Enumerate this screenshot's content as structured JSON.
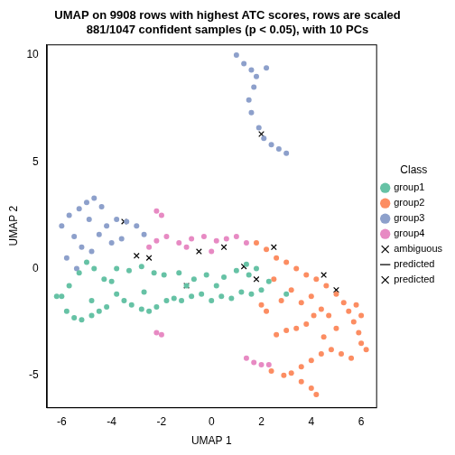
{
  "chart_data": {
    "type": "scatter",
    "title": "UMAP on 9908 rows with highest ATC scores, rows are scaled\n881/1047 confident samples (p < 0.05), with 10 PCs",
    "x_label": "UMAP 1",
    "y_label": "UMAP 2",
    "legend_title": "Class",
    "legend": "right",
    "grid": false,
    "xlim": [
      -6.6,
      6.6
    ],
    "ylim": [
      -6.5,
      10.5
    ],
    "xticks": [
      -6,
      -4,
      -2,
      0,
      2,
      4,
      6
    ],
    "yticks": [
      -5,
      0,
      5,
      10
    ],
    "series": [
      {
        "name": "group1",
        "color": "#66C2A5",
        "marker": "circle",
        "values": [
          [
            -6.0,
            -1.3
          ],
          [
            -5.8,
            -2.0
          ],
          [
            -5.5,
            -2.3
          ],
          [
            -5.2,
            -2.4
          ],
          [
            -4.8,
            -2.2
          ],
          [
            -4.5,
            -2.0
          ],
          [
            -4.2,
            -1.8
          ],
          [
            -5.7,
            -0.8
          ],
          [
            -5.3,
            -0.2
          ],
          [
            -5.0,
            0.3
          ],
          [
            -4.7,
            0.0
          ],
          [
            -4.3,
            -0.5
          ],
          [
            -3.8,
            -1.2
          ],
          [
            -3.5,
            -1.5
          ],
          [
            -3.2,
            -1.7
          ],
          [
            -2.8,
            -1.9
          ],
          [
            -2.5,
            -2.0
          ],
          [
            -2.2,
            -1.8
          ],
          [
            -1.8,
            -1.5
          ],
          [
            -1.5,
            -1.4
          ],
          [
            -1.2,
            -1.5
          ],
          [
            -0.8,
            -1.3
          ],
          [
            -0.4,
            -1.2
          ],
          [
            0.0,
            -1.5
          ],
          [
            0.4,
            -1.3
          ],
          [
            0.8,
            -1.4
          ],
          [
            1.2,
            -1.1
          ],
          [
            1.6,
            -1.2
          ],
          [
            2.0,
            -1.0
          ],
          [
            -3.8,
            0.0
          ],
          [
            -3.3,
            -0.1
          ],
          [
            -2.8,
            0.1
          ],
          [
            -2.3,
            -0.2
          ],
          [
            -1.9,
            -0.3
          ],
          [
            -1.3,
            -0.2
          ],
          [
            -0.7,
            -0.5
          ],
          [
            -0.2,
            -0.3
          ],
          [
            0.5,
            -0.4
          ],
          [
            1.0,
            -0.1
          ],
          [
            1.4,
            0.2
          ],
          [
            1.8,
            0.0
          ],
          [
            -4.0,
            -0.6
          ],
          [
            -2.7,
            -1.1
          ],
          [
            -1.0,
            -0.8
          ],
          [
            0.2,
            -0.8
          ],
          [
            1.5,
            -0.3
          ],
          [
            2.3,
            -0.6
          ],
          [
            3.0,
            -1.2
          ],
          [
            -6.2,
            -1.3
          ],
          [
            -4.8,
            -1.5
          ]
        ]
      },
      {
        "name": "group2",
        "color": "#FC8D62",
        "marker": "circle",
        "values": [
          [
            1.8,
            1.2
          ],
          [
            2.2,
            0.9
          ],
          [
            2.6,
            0.5
          ],
          [
            3.0,
            0.3
          ],
          [
            3.4,
            0.0
          ],
          [
            3.8,
            -0.3
          ],
          [
            4.2,
            -0.5
          ],
          [
            4.6,
            -0.8
          ],
          [
            5.0,
            -1.2
          ],
          [
            5.3,
            -1.6
          ],
          [
            5.5,
            -2.0
          ],
          [
            5.7,
            -2.5
          ],
          [
            5.9,
            -3.0
          ],
          [
            6.0,
            -3.5
          ],
          [
            6.2,
            -3.8
          ],
          [
            5.6,
            -4.2
          ],
          [
            5.2,
            -4.0
          ],
          [
            4.8,
            -3.8
          ],
          [
            4.4,
            -4.0
          ],
          [
            4.0,
            -4.3
          ],
          [
            3.6,
            -4.6
          ],
          [
            3.2,
            -4.9
          ],
          [
            2.9,
            -5.0
          ],
          [
            3.6,
            -5.3
          ],
          [
            4.0,
            -5.6
          ],
          [
            4.2,
            -5.9
          ],
          [
            2.4,
            -4.8
          ],
          [
            2.6,
            -3.1
          ],
          [
            3.0,
            -2.9
          ],
          [
            3.4,
            -2.8
          ],
          [
            3.8,
            -2.6
          ],
          [
            4.1,
            -2.2
          ],
          [
            4.4,
            -1.9
          ],
          [
            4.7,
            -2.2
          ],
          [
            2.5,
            -0.5
          ],
          [
            2.8,
            -1.5
          ],
          [
            3.2,
            -1.0
          ],
          [
            3.6,
            -1.6
          ],
          [
            4.0,
            -1.3
          ],
          [
            4.5,
            -3.2
          ],
          [
            5.0,
            -2.8
          ],
          [
            2.0,
            -1.7
          ],
          [
            2.2,
            -2.0
          ],
          [
            5.8,
            -1.7
          ],
          [
            6.0,
            -2.2
          ]
        ]
      },
      {
        "name": "group3",
        "color": "#8DA0CB",
        "marker": "circle",
        "values": [
          [
            -6.0,
            2.0
          ],
          [
            -5.7,
            2.5
          ],
          [
            -5.3,
            2.8
          ],
          [
            -5.0,
            3.1
          ],
          [
            -4.7,
            3.3
          ],
          [
            -4.4,
            2.9
          ],
          [
            -4.9,
            2.3
          ],
          [
            -5.5,
            1.5
          ],
          [
            -5.2,
            1.0
          ],
          [
            -4.8,
            0.8
          ],
          [
            -4.2,
            2.0
          ],
          [
            -3.8,
            2.3
          ],
          [
            -3.4,
            2.2
          ],
          [
            -3.0,
            2.0
          ],
          [
            -2.7,
            1.6
          ],
          [
            -3.6,
            1.4
          ],
          [
            -4.0,
            1.2
          ],
          [
            -4.5,
            1.6
          ],
          [
            -5.8,
            0.5
          ],
          [
            -5.4,
            0.0
          ],
          [
            1.0,
            10.0
          ],
          [
            1.3,
            9.6
          ],
          [
            1.6,
            9.3
          ],
          [
            1.8,
            9.0
          ],
          [
            1.7,
            8.5
          ],
          [
            1.5,
            7.9
          ],
          [
            1.6,
            7.3
          ],
          [
            1.9,
            6.6
          ],
          [
            2.1,
            6.1
          ],
          [
            2.4,
            5.8
          ],
          [
            2.7,
            5.6
          ],
          [
            3.0,
            5.4
          ],
          [
            2.2,
            9.4
          ]
        ]
      },
      {
        "name": "group4",
        "color": "#E78AC3",
        "marker": "circle",
        "values": [
          [
            -2.5,
            1.0
          ],
          [
            -2.2,
            1.3
          ],
          [
            -1.8,
            1.5
          ],
          [
            -1.3,
            1.2
          ],
          [
            -0.8,
            1.4
          ],
          [
            -0.3,
            1.5
          ],
          [
            0.2,
            1.3
          ],
          [
            0.6,
            1.4
          ],
          [
            1.0,
            1.5
          ],
          [
            1.4,
            1.2
          ],
          [
            -2.2,
            2.7
          ],
          [
            -2.0,
            2.5
          ],
          [
            -2.2,
            -3.0
          ],
          [
            -2.0,
            -3.1
          ],
          [
            1.4,
            -4.2
          ],
          [
            1.7,
            -4.4
          ],
          [
            2.0,
            -4.5
          ],
          [
            2.3,
            -4.5
          ],
          [
            -1.0,
            1.0
          ],
          [
            0.0,
            0.8
          ]
        ]
      },
      {
        "name": "ambiguous",
        "color": "#000000",
        "marker": "cross",
        "values": [
          [
            -3.5,
            2.2
          ],
          [
            -2.5,
            0.5
          ],
          [
            -1.0,
            -0.8
          ],
          [
            0.5,
            1.0
          ],
          [
            1.3,
            0.1
          ],
          [
            2.0,
            6.3
          ],
          [
            2.5,
            1.0
          ],
          [
            4.5,
            -0.3
          ],
          [
            5.0,
            -1.0
          ],
          [
            -3.0,
            0.6
          ],
          [
            1.8,
            -0.5
          ],
          [
            -0.5,
            0.8
          ]
        ]
      },
      {
        "name": "predicted",
        "color": "#000000",
        "marker": "dash",
        "values": []
      },
      {
        "name": "predicted",
        "color": "#000000",
        "marker": "small_cross",
        "values": []
      }
    ]
  }
}
